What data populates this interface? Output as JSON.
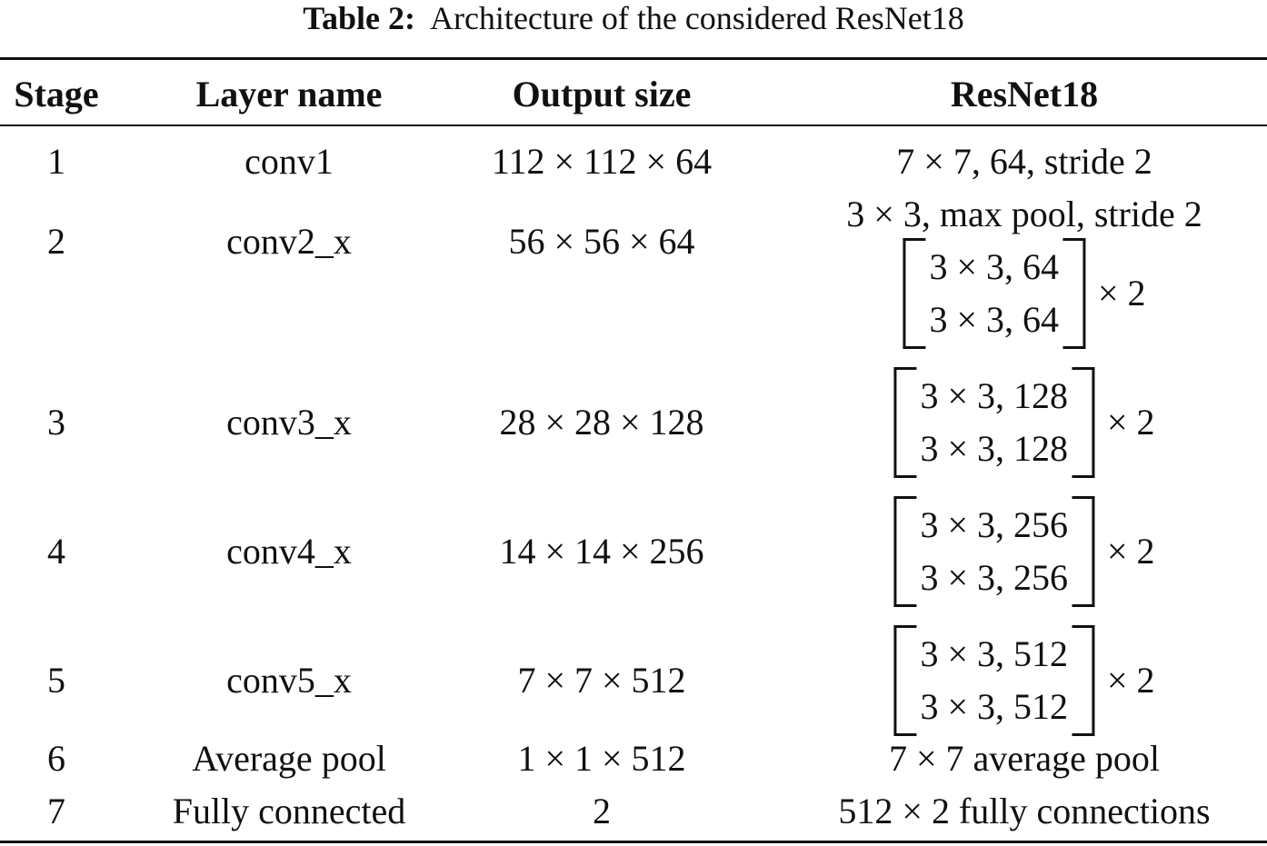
{
  "caption": {
    "label": "Table 2:",
    "text": "Architecture of the considered ResNet18"
  },
  "table": {
    "header": [
      "Stage",
      "Layer name",
      "Output size",
      "ResNet18"
    ],
    "rows": [
      [
        "1",
        "conv1",
        "112 × 112 × 64",
        {
          "lines": [
            "7 × 7, 64, stride 2"
          ]
        }
      ],
      [
        "2",
        "conv2_x",
        "56 × 56 × 64",
        {
          "lines": [
            "3 × 3, max pool, stride 2"
          ],
          "block": [
            "3 × 3, 64",
            "3 × 3, 64"
          ],
          "repeat": "× 2"
        }
      ],
      [
        "3",
        "conv3_x",
        "28 × 28 × 128",
        {
          "block": [
            "3 × 3, 128",
            "3 × 3, 128"
          ],
          "repeat": "× 2"
        }
      ],
      [
        "4",
        "conv4_x",
        "14 × 14 × 256",
        {
          "block": [
            "3 × 3, 256",
            "3 × 3, 256"
          ],
          "repeat": "× 2"
        }
      ],
      [
        "5",
        "conv5_x",
        "7 × 7 × 512",
        {
          "block": [
            "3 × 3, 512",
            "3 × 3, 512"
          ],
          "repeat": "× 2"
        }
      ],
      [
        "6",
        "Average pool",
        "1 × 1 × 512",
        {
          "lines": [
            "7 × 7 average pool"
          ]
        }
      ],
      [
        "7",
        "Fully connected",
        "2",
        {
          "lines": [
            "512 × 2 fully connections"
          ]
        }
      ]
    ]
  }
}
